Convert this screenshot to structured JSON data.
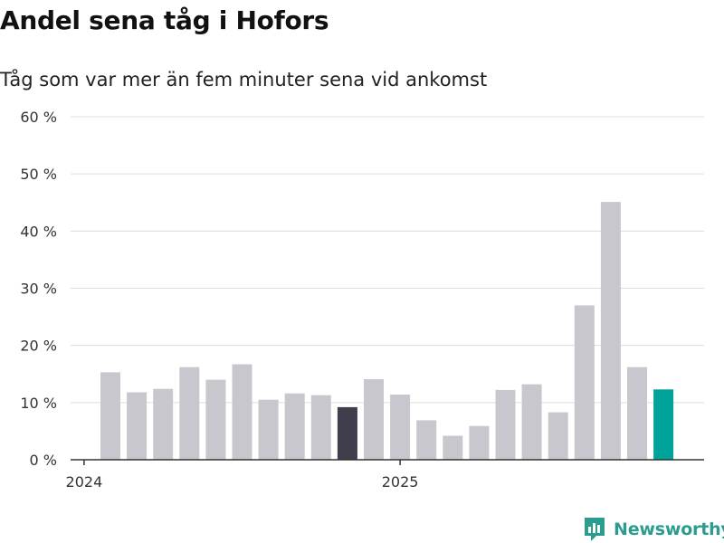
{
  "title": "Andel sena tåg i Hofors",
  "subtitle": "Tåg som var mer än fem minuter sena vid ankomst",
  "brand": {
    "name": "Newsworthy",
    "icon": "newsworthy-logo-icon"
  },
  "colors": {
    "bar_default": "#c8c7ce",
    "bar_highlight_dark": "#403e4d",
    "bar_highlight_latest": "#00a39a",
    "grid": "#dddddd",
    "axis": "#333333"
  },
  "chart_data": {
    "type": "bar",
    "title": "Andel sena tåg i Hofors",
    "subtitle": "Tåg som var mer än fem minuter sena vid ankomst",
    "xlabel": "",
    "ylabel": "",
    "unit": "%",
    "ylim": [
      0,
      60
    ],
    "yticks": [
      0,
      10,
      20,
      30,
      40,
      50,
      60
    ],
    "ytick_labels": [
      "0 %",
      "10 %",
      "20 %",
      "30 %",
      "40 %",
      "50 %",
      "60 %"
    ],
    "xtick_labels": [
      {
        "label": "2024",
        "at": "2024-01"
      },
      {
        "label": "2025",
        "at": "2025-01"
      }
    ],
    "grid": true,
    "categories": [
      "2024-02",
      "2024-03",
      "2024-04",
      "2024-05",
      "2024-06",
      "2024-07",
      "2024-08",
      "2024-09",
      "2024-10",
      "2024-11",
      "2024-12",
      "2025-01",
      "2025-02",
      "2025-03",
      "2025-04",
      "2025-05",
      "2025-06",
      "2025-07",
      "2025-08",
      "2025-09",
      "2025-10",
      "2025-11"
    ],
    "values": [
      15.3,
      11.8,
      12.4,
      16.2,
      14.0,
      16.7,
      10.5,
      11.6,
      11.3,
      9.2,
      14.1,
      11.4,
      6.9,
      4.2,
      5.9,
      12.2,
      13.2,
      8.3,
      27.0,
      45.1,
      16.2,
      12.3
    ],
    "highlights": [
      {
        "category": "2024-11",
        "color": "#403e4d"
      },
      {
        "category": "2025-11",
        "color": "#00a39a"
      }
    ]
  }
}
